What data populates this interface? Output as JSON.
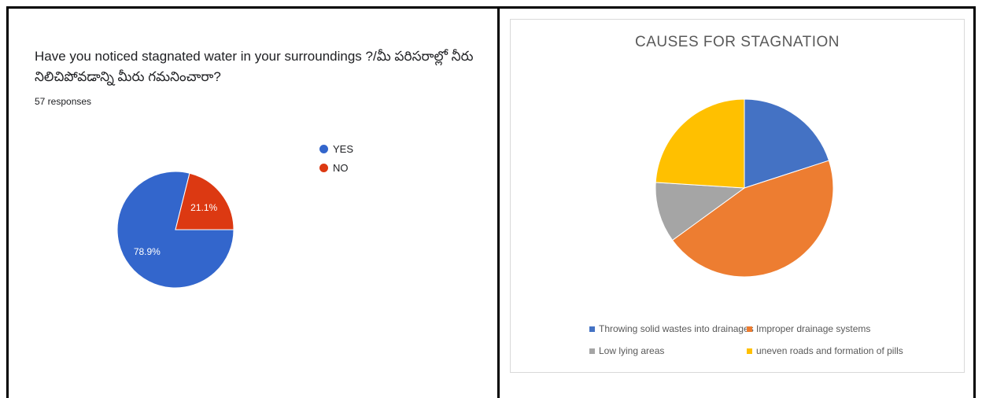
{
  "left_panel": {
    "question": "Have you noticed stagnated water in your surroundings ?/మీ పరిసరాల్లో నీరు నిలిచిపోవడాన్ని మీరు గమనించారా?",
    "responses": "57 responses"
  },
  "right_panel": {},
  "chart_data": [
    {
      "type": "pie",
      "categories": [
        "YES",
        "NO"
      ],
      "values": [
        78.9,
        21.1
      ],
      "value_labels": [
        "78.9%",
        "21.1%"
      ],
      "colors": [
        "#3366cc",
        "#dc3912"
      ],
      "legend": "right",
      "title": ""
    },
    {
      "type": "pie",
      "title": "CAUSES FOR STAGNATION",
      "categories": [
        "Throwing solid wastes into drainages",
        "Improper drainage systems",
        "Low lying areas",
        "uneven roads and formation of pills"
      ],
      "values": [
        20,
        45,
        11,
        24
      ],
      "colors": [
        "#4472c4",
        "#ed7d31",
        "#a5a5a5",
        "#ffc000"
      ],
      "legend": "bottom"
    }
  ]
}
